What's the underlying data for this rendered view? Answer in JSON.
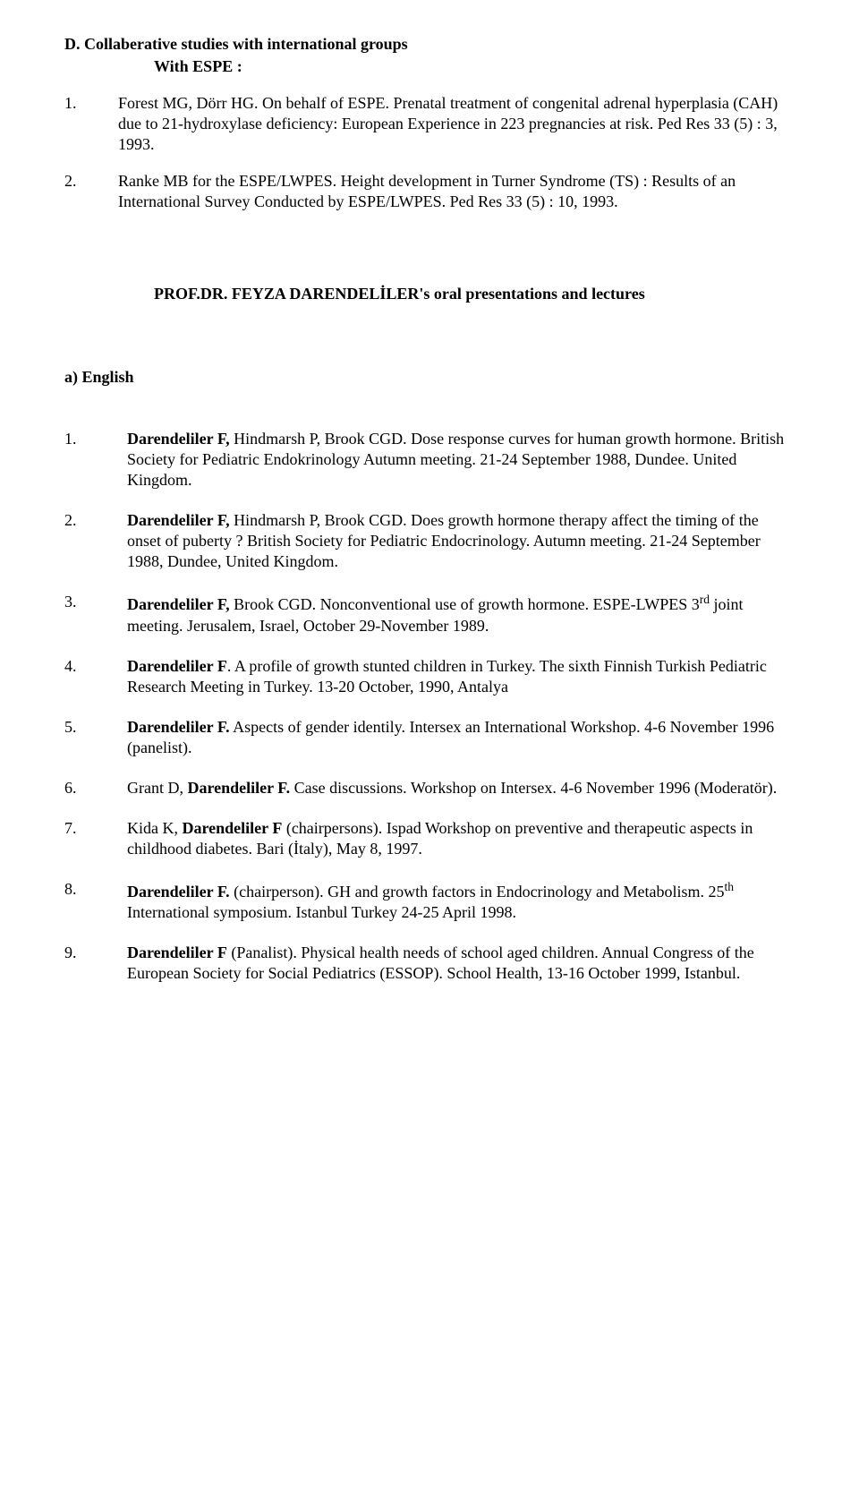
{
  "sectionD": {
    "title": "D. Collaberative studies with international groups",
    "subtitle": "With  ESPE  :"
  },
  "topList": [
    {
      "num": "1.",
      "text": "Forest MG, Dörr HG. On behalf of ESPE. Prenatal treatment of congenital adrenal hyperplasia (CAH) due to 21-hydroxylase deficiency: European Experience in 223 pregnancies at risk. Ped Res 33 (5) : 3, 1993."
    },
    {
      "num": "2.",
      "text": "Ranke MB for the ESPE/LWPES. Height development in Turner Syndrome (TS) : Results of an International Survey Conducted by ESPE/LWPES. Ped Res 33 (5) : 10, 1993."
    }
  ],
  "centerHead": "PROF.DR. FEYZA DARENDELİLER's oral presentations and lectures",
  "subA": "a)  English",
  "mainList": [
    {
      "num": "1.",
      "boldLead": "Darendeliler F,",
      "rest": " Hindmarsh P, Brook CGD. Dose response curves for human growth hormone. British Society for Pediatric Endokrinology Autumn meeting. 21-24 September 1988, Dundee. United Kingdom."
    },
    {
      "num": "2.",
      "boldLead": "Darendeliler F,",
      "rest": " Hindmarsh P, Brook CGD. Does growth hormone therapy affect the timing of the onset of puberty ? British Society for Pediatric Endocrinology. Autumn meeting. 21-24 September 1988, Dundee, United Kingdom."
    },
    {
      "num": "3.",
      "boldLead": "Darendeliler F,",
      "rest_pre": " Brook CGD. Nonconventional use of growth hormone. ESPE-LWPES 3",
      "sup": "rd",
      "rest_post": " joint meeting. Jerusalem, Israel, October 29-November 1989."
    },
    {
      "num": "4.",
      "boldLead": "Darendeliler F",
      "rest": ". A profile of growth stunted  children in Turkey. The sixth Finnish Turkish Pediatric Research Meeting in Turkey. 13-20 October, 1990, Antalya"
    },
    {
      "num": "5.",
      "boldLead": "Darendeliler F.",
      "rest": " Aspects of gender identily. Intersex an International Workshop. 4-6 November 1996 (panelist)."
    },
    {
      "num": "6.",
      "pre": "Grant D, ",
      "boldLead": "Darendeliler F.",
      "rest": " Case discussions. Workshop on Intersex. 4-6 November 1996 (Moderatör)."
    },
    {
      "num": "7.",
      "pre": "Kida K, ",
      "boldLead": "Darendeliler F",
      "rest": " (chairpersons). Ispad Workshop on  preventive and therapeutic aspects in childhood diabetes. Bari (İtaly), May 8, 1997."
    },
    {
      "num": "8.",
      "boldLead": "Darendeliler F.",
      "rest_pre": " (chairperson). GH and growth factors in Endocrinology and Metabolism. 25",
      "sup": "th",
      "rest_post": " International symposium. Istanbul Turkey 24-25 April 1998."
    },
    {
      "num": "9.",
      "boldLead": "Darendeliler F",
      "rest": " (Panalist). Physical health needs of school  aged children. Annual Congress of the European Society for Social Pediatrics (ESSOP). School Health, 13-16 October 1999, Istanbul."
    }
  ]
}
